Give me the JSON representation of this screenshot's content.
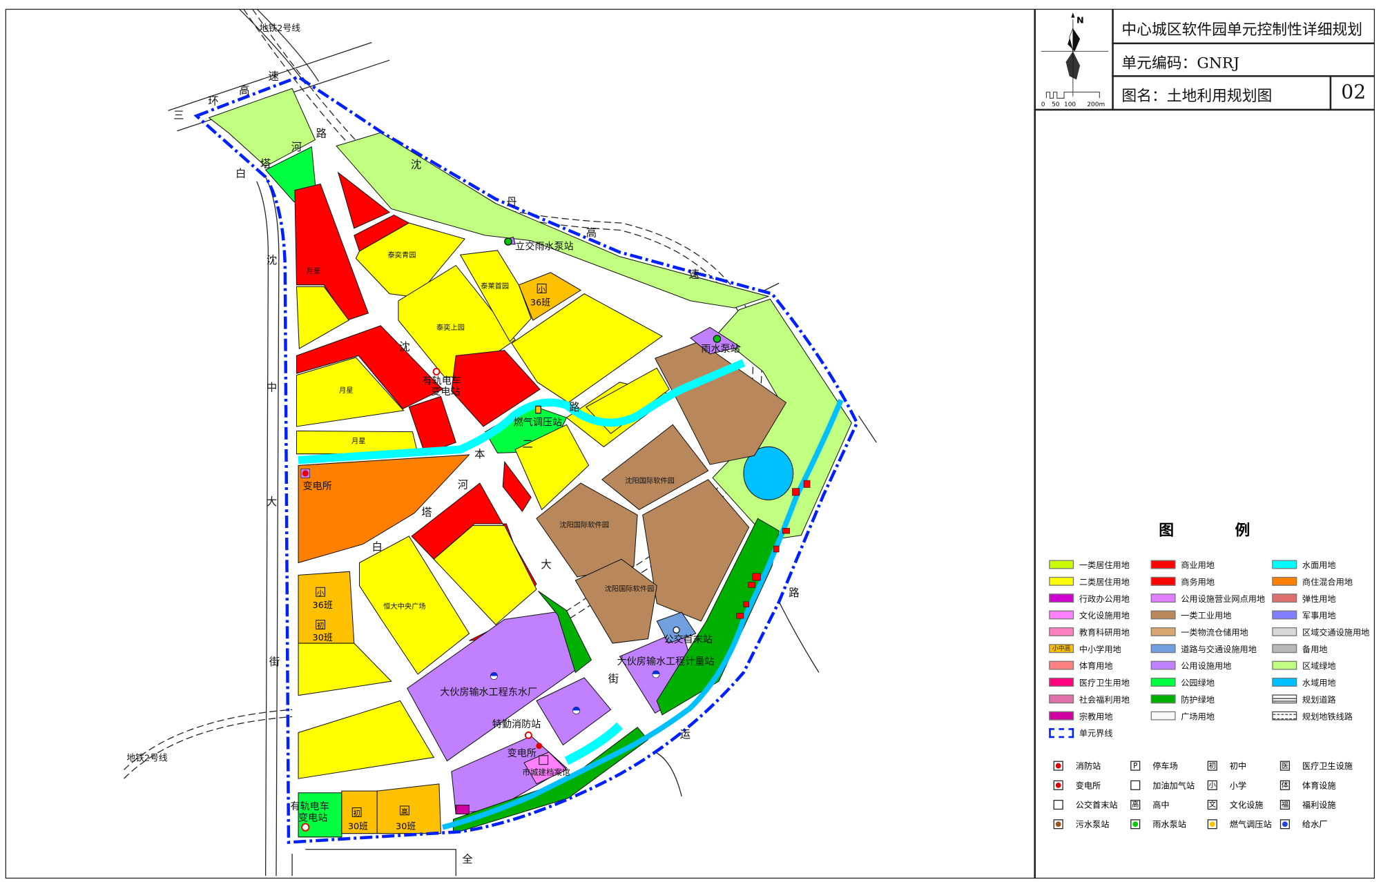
{
  "title_block": {
    "project_title": "中心城区软件园单元控制性详细规划",
    "unit_code": "单元编码：GNRJ",
    "drawing_name": "图名：土地利用规划图",
    "drawing_number": "02",
    "north_label": "N",
    "scale_labels": [
      "0",
      "50",
      "100",
      "200m"
    ]
  },
  "legend": {
    "title_left": "图",
    "title_right": "例",
    "columns": [
      [
        {
          "label": "一类居住用地",
          "color": "#c8ff00"
        },
        {
          "label": "二类居住用地",
          "color": "#ffff00"
        },
        {
          "label": "行政办公用地",
          "color": "#d000d0"
        },
        {
          "label": "文化设施用地",
          "color": "#ff80ff"
        },
        {
          "label": "教育科研用地",
          "color": "#ff80c0"
        },
        {
          "label": "中小学用地",
          "color": "#ffc000",
          "swatch_text": "小中高"
        },
        {
          "label": "体育用地",
          "color": "#ff8080"
        },
        {
          "label": "医疗卫生用地",
          "color": "#ff0080"
        },
        {
          "label": "社会福利用地",
          "color": "#e070a8"
        },
        {
          "label": "宗教用地",
          "color": "#d000a0"
        },
        {
          "label": "单元界线",
          "color": "#0020ff"
        }
      ],
      [
        {
          "label": "商业用地",
          "color": "#ff0000"
        },
        {
          "label": "商务用地",
          "color": "#ff0000"
        },
        {
          "label": "公用设施营业网点用地",
          "color": "#e080ff"
        },
        {
          "label": "一类工业用地",
          "color": "#b8885c"
        },
        {
          "label": "一类物流仓储用地",
          "color": "#d8a870"
        },
        {
          "label": "道路与交通设施用地",
          "color": "#70a0e0"
        },
        {
          "label": "公用设施用地",
          "color": "#c080ff"
        },
        {
          "label": "公园绿地",
          "color": "#00ff40"
        },
        {
          "label": "防护绿地",
          "color": "#00b000"
        },
        {
          "label": "广场用地",
          "color": "#f8f8f8"
        }
      ],
      [
        {
          "label": "水面用地",
          "color": "#00ffff"
        },
        {
          "label": "商住混合用地",
          "color": "#ff8000"
        },
        {
          "label": "弹性用地",
          "color": "#e07070"
        },
        {
          "label": "军事用地",
          "color": "#8080ff"
        },
        {
          "label": "区域交通设施用地",
          "color": "#d8d8d8"
        },
        {
          "label": "备用地",
          "color": "#b8b8b8"
        },
        {
          "label": "区域绿地",
          "color": "#c0ff80"
        },
        {
          "label": "水域用地",
          "color": "#00c0ff"
        },
        {
          "label": "规划道路",
          "color": "#ffffff"
        },
        {
          "label": "规划地铁线路",
          "color": "#ffffff"
        }
      ]
    ],
    "symbols": [
      [
        {
          "label": "消防站",
          "icon": "fire-station-icon"
        },
        {
          "label": "停车场",
          "icon": "parking-icon",
          "glyph": "P"
        },
        {
          "label": "初中",
          "icon": "junior-school-icon",
          "glyph": "初"
        },
        {
          "label": "医疗卫生设施",
          "icon": "medical-icon",
          "glyph": "医"
        }
      ],
      [
        {
          "label": "变电所",
          "icon": "substation-icon"
        },
        {
          "label": "加油加气站",
          "icon": "gas-station-icon"
        },
        {
          "label": "小学",
          "icon": "primary-school-icon",
          "glyph": "小"
        },
        {
          "label": "体育设施",
          "icon": "sports-icon",
          "glyph": "体"
        }
      ],
      [
        {
          "label": "公交首末站",
          "icon": "bus-terminal-icon"
        },
        {
          "label": "高中",
          "icon": "high-school-icon",
          "glyph": "高"
        },
        {
          "label": "文化设施",
          "icon": "culture-icon",
          "glyph": "文"
        },
        {
          "label": "福利设施",
          "icon": "welfare-icon",
          "glyph": "福"
        }
      ],
      [
        {
          "label": "污水泵站",
          "icon": "sewage-pump-icon"
        },
        {
          "label": "雨水泵站",
          "icon": "rain-pump-icon"
        },
        {
          "label": "燃气调压站",
          "icon": "gas-regulator-icon"
        },
        {
          "label": "给水厂",
          "icon": "water-plant-icon"
        }
      ]
    ]
  },
  "map": {
    "metro_labels": [
      "地铁2号线",
      "地铁2号线"
    ],
    "roads": {
      "ring_expressway": [
        "三",
        "环",
        "高",
        "速"
      ],
      "shendan_expressway": [
        "沈",
        "丹",
        "高",
        "速"
      ],
      "baitahe_road": [
        "白",
        "塔",
        "河",
        "路"
      ],
      "shenzhong_street": [
        "沈",
        "中",
        "大",
        "街"
      ],
      "shenben_street": [
        "沈",
        "本",
        "大",
        "街"
      ],
      "baitahe_2nd_road": [
        "白",
        "塔",
        "河",
        "二",
        "路"
      ],
      "quanyun_road": [
        "全",
        "运",
        "路"
      ]
    },
    "parcels": {
      "yuexing_1": "月星",
      "yuexing_2": "月星",
      "yuexing_3": "月星",
      "taiyi_qingyuan": "泰奕青园",
      "tailai_shouyuan": "泰莱首园",
      "taiyi_shangyuan": "泰奕上园",
      "software_park_1": "沈阳国际软件园",
      "software_park_2": "沈阳国际软件园",
      "software_park_3": "沈阳国际软件园",
      "evergrande_plaza": "恒大中央广场"
    },
    "facilities": {
      "lijiao_pump": "立交雨水泵站",
      "rain_pump": "雨水泵站",
      "tram_substation_1": [
        "有轨电车",
        "变电站"
      ],
      "gas_regulator": "燃气调压站",
      "substation_west": "变电所",
      "water_plant_east": "大伙房输水工程东水厂",
      "metering_station": "大伙房输水工程计量站",
      "bus_terminal": "公交首末站",
      "fire_station": "特勤消防站",
      "substation_south": "变电所",
      "archive": "市城建档案馆",
      "tram_substation_2": [
        "有轨电车",
        "变电站"
      ]
    },
    "schools": [
      {
        "type": "小",
        "classes": "36班"
      },
      {
        "type": "小",
        "classes": "36班"
      },
      {
        "type": "初",
        "classes": "30班"
      },
      {
        "type": "初",
        "classes": "30班"
      },
      {
        "type": "高",
        "classes": "30班"
      }
    ]
  }
}
